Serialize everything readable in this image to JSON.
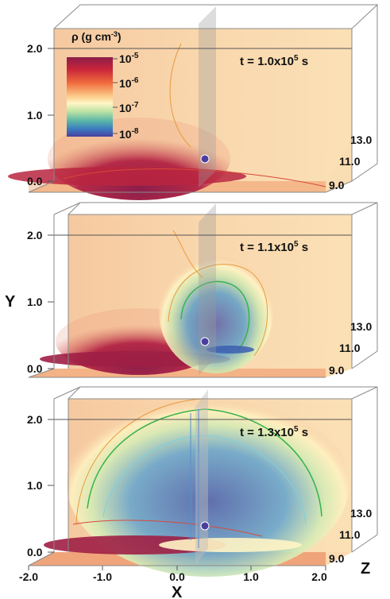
{
  "panels": [
    {
      "time_label": "t = 1.0x10",
      "time_exp": "5",
      "time_unit": "s",
      "density_frac": 0.35
    },
    {
      "time_label": "t = 1.1x10",
      "time_exp": "5",
      "time_unit": "s",
      "density_frac": 0.55
    },
    {
      "time_label": "t = 1.3x10",
      "time_exp": "5",
      "time_unit": "s",
      "density_frac": 0.85
    }
  ],
  "y_ticks": [
    "0.0",
    "1.0",
    "2.0"
  ],
  "z_ticks": [
    "9.0",
    "11.0",
    "13.0"
  ],
  "x_ticks": [
    "-2.0",
    "-1.0",
    "0.0",
    "1.0",
    "2.0"
  ],
  "axis_labels": {
    "x": "X",
    "y": "Y",
    "z": "Z"
  },
  "colorbar": {
    "title_prefix": "ρ (g cm",
    "title_exp": "-3",
    "title_suffix": ")",
    "labels": [
      {
        "base": "10",
        "exp": "-5"
      },
      {
        "base": "10",
        "exp": "-6"
      },
      {
        "base": "10",
        "exp": "-7"
      },
      {
        "base": "10",
        "exp": "-8"
      }
    ],
    "colors": [
      "#8b1e4a",
      "#c8243a",
      "#ef6a3c",
      "#fbc583",
      "#fff6c6",
      "#bfe3a4",
      "#5ab7a7",
      "#3b7dc0",
      "#4a3f9e"
    ]
  }
}
